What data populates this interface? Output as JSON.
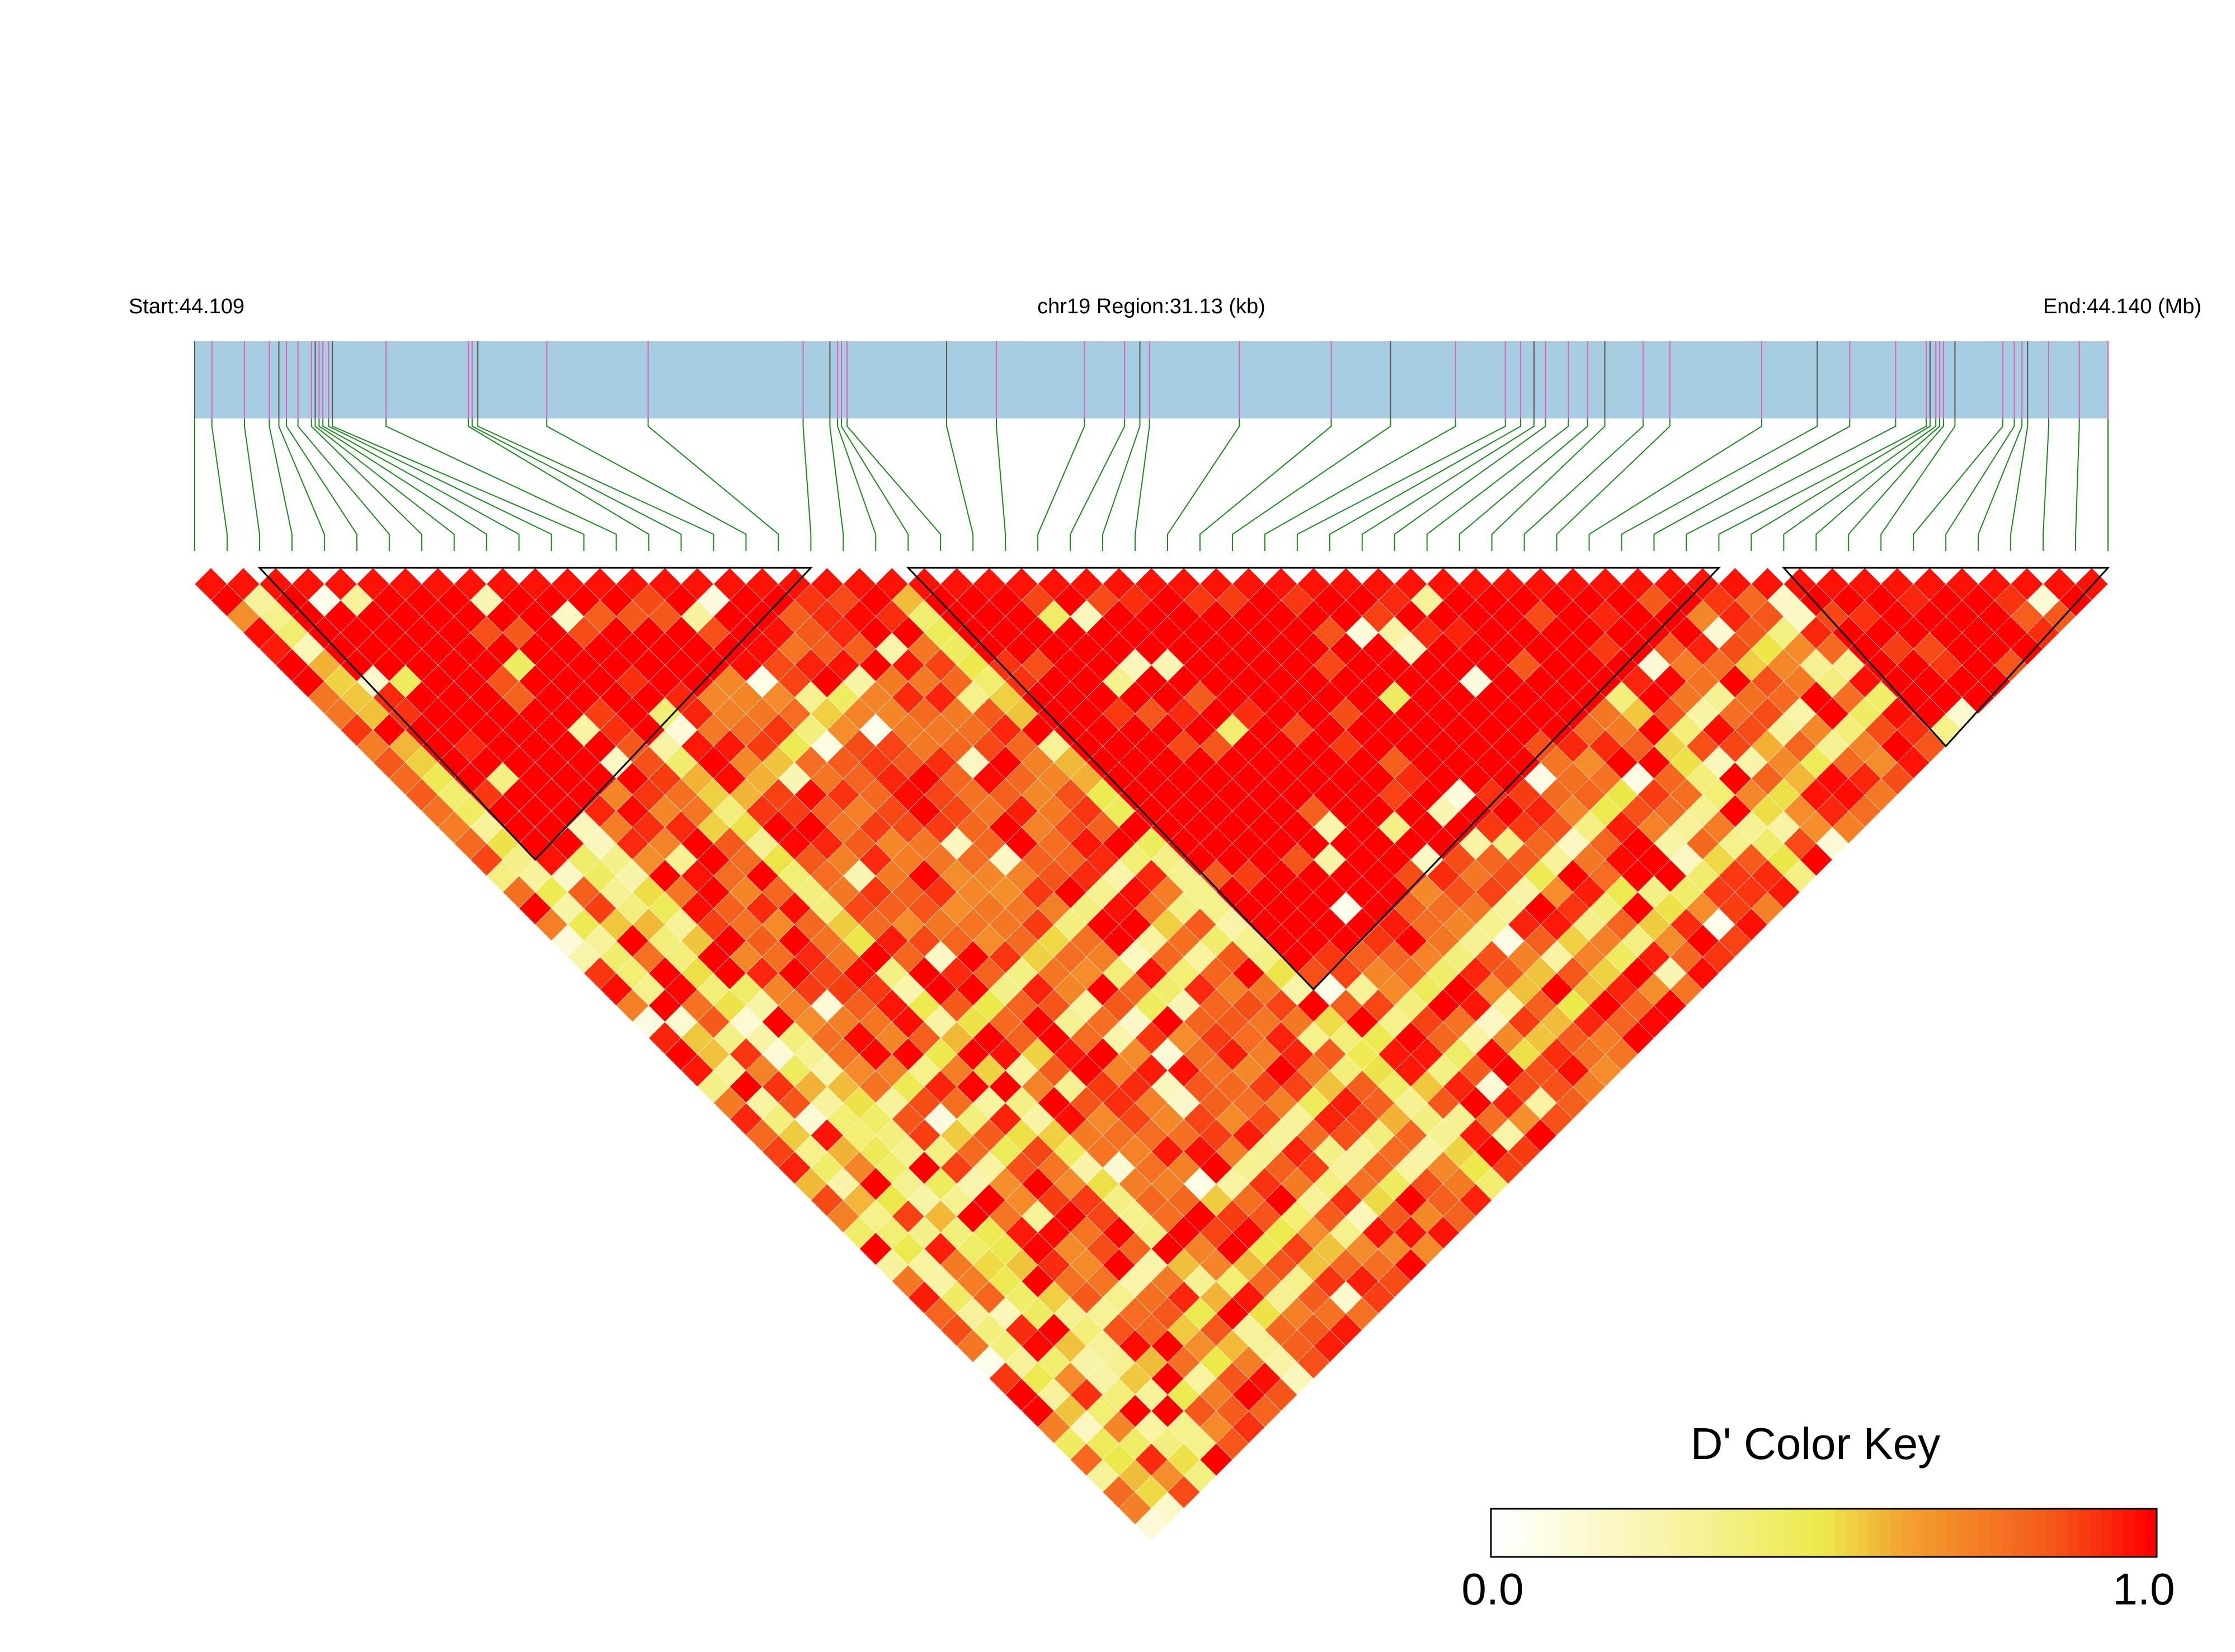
{
  "chart_data": {
    "type": "heatmap",
    "title": "chr19 Region:31.13 (kb)",
    "start_label": "Start:44.109",
    "end_label": "End:44.140 (Mb)",
    "region_start_mb": 44.109,
    "region_end_mb": 44.14,
    "chromosome": "chr19",
    "snp_count": 60,
    "snp_relative_positions": [
      0.0,
      0.009,
      0.026,
      0.039,
      0.044,
      0.048,
      0.054,
      0.061,
      0.063,
      0.065,
      0.067,
      0.07,
      0.072,
      0.1,
      0.143,
      0.145,
      0.148,
      0.184,
      0.237,
      0.318,
      0.332,
      0.336,
      0.338,
      0.341,
      0.393,
      0.419,
      0.465,
      0.486,
      0.494,
      0.499,
      0.546,
      0.594,
      0.625,
      0.659,
      0.685,
      0.693,
      0.7,
      0.706,
      0.718,
      0.728,
      0.737,
      0.757,
      0.771,
      0.819,
      0.848,
      0.865,
      0.889,
      0.905,
      0.907,
      0.91,
      0.912,
      0.914,
      0.92,
      0.945,
      0.951,
      0.955,
      0.958,
      0.969,
      0.985,
      1.0
    ],
    "blocks": [
      {
        "first_snp": 2,
        "last_snp": 19
      },
      {
        "first_snp": 22,
        "last_snp": 47
      },
      {
        "first_snp": 49,
        "last_snp": 59
      }
    ],
    "legend_title": "D' Color Key",
    "legend_min": "0.0",
    "legend_max": "1.0",
    "value_range": [
      0,
      1
    ],
    "colors": {
      "bar": "#a7cde0",
      "bar_tick_dark": "#555555",
      "bar_tick_pink": "#e060c0",
      "connector": "#1a8a1a",
      "scale": [
        "#ffffff",
        "#f7f3a0",
        "#ece94a",
        "#f3a330",
        "#f5581a",
        "#ff0000"
      ]
    },
    "ld_seed": 20240519
  }
}
